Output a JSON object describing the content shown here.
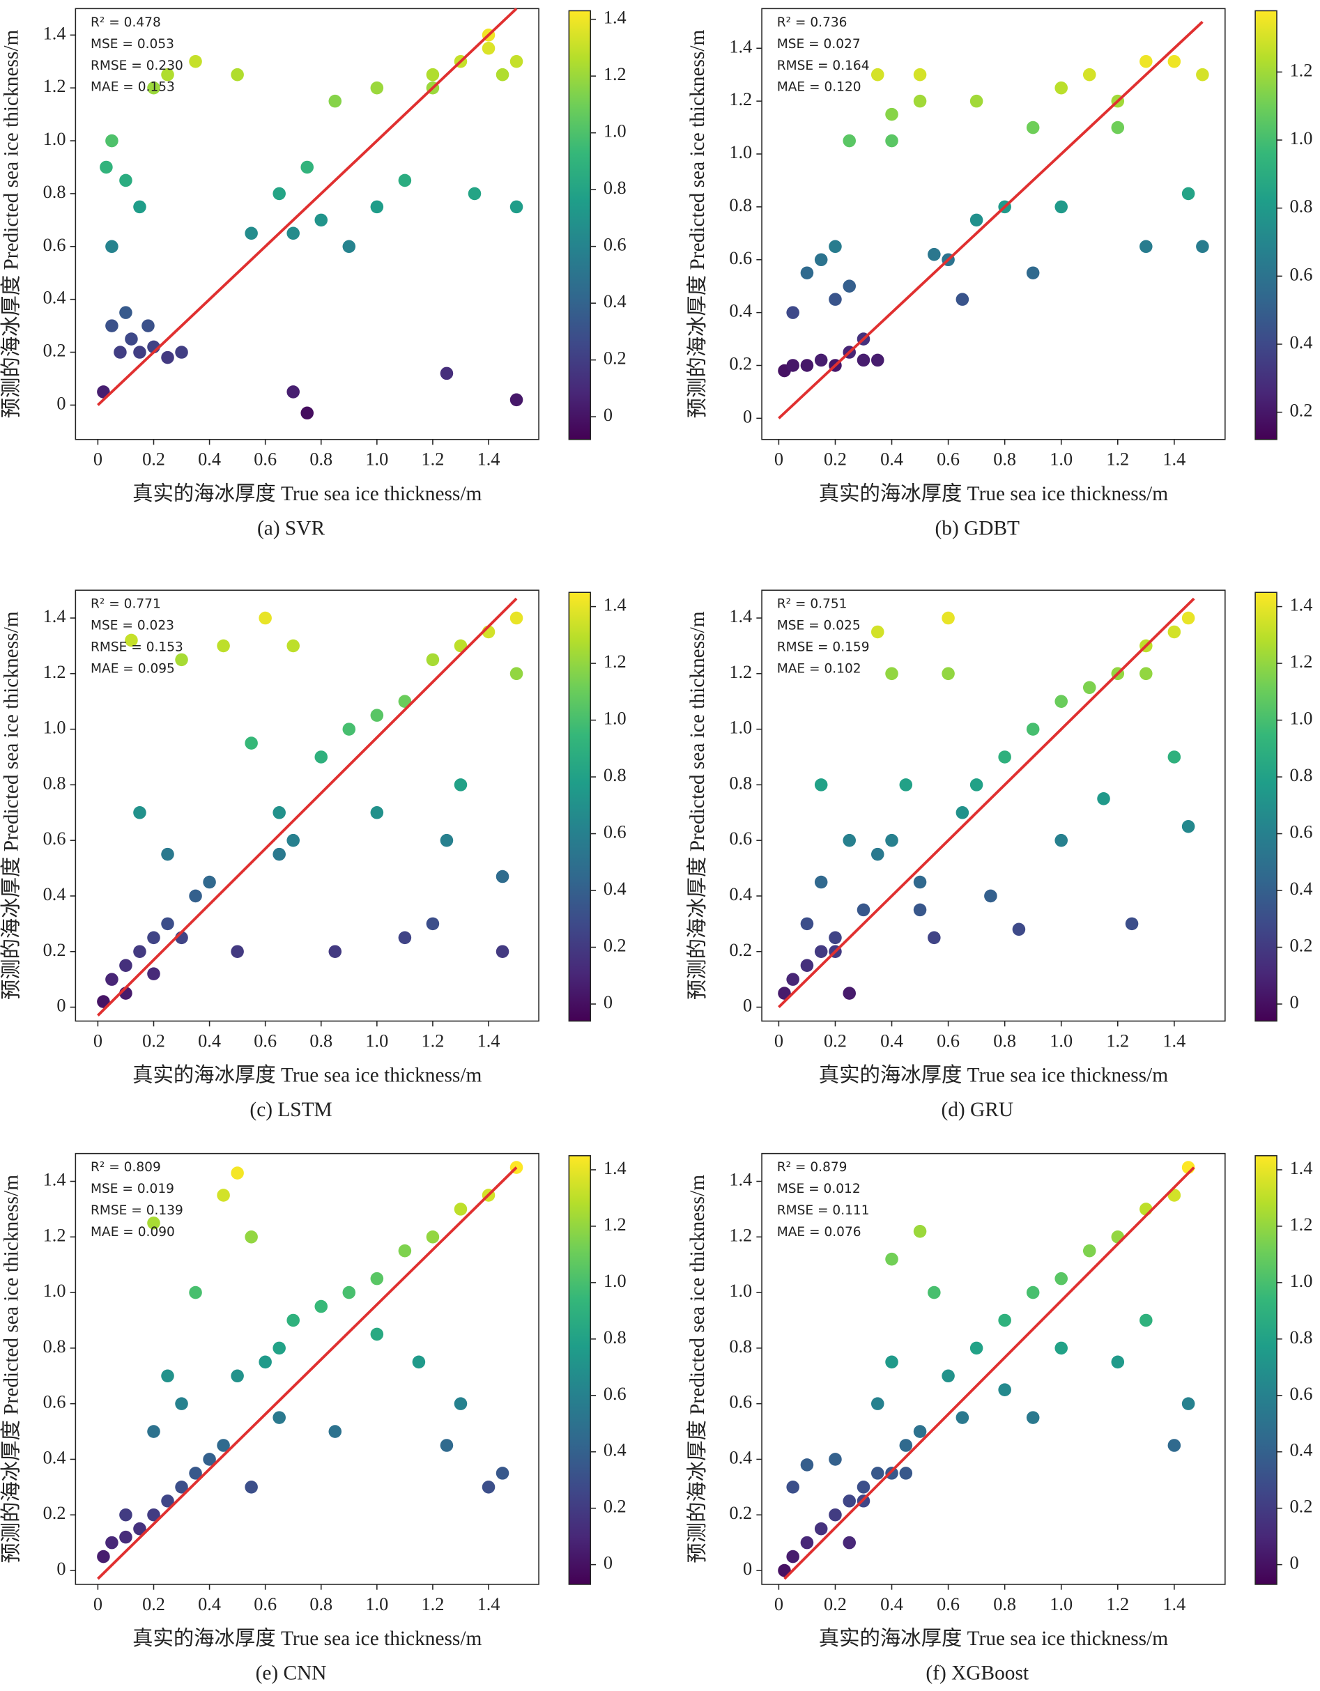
{
  "chart_data": [
    {
      "type": "scatter",
      "title": "(a) SVR",
      "xlabel": "真实的海冰厚度 True sea ice thickness/m",
      "ylabel": "预测的海冰厚度 Predicted sea ice thickness/m",
      "annotations": [
        "R² = 0.478",
        "MSE = 0.053",
        "RMSE = 0.230",
        "MAE = 0.153"
      ],
      "x": [
        0.02,
        0.05,
        0.08,
        0.1,
        0.12,
        0.15,
        0.18,
        0.2,
        0.25,
        0.3,
        0.03,
        0.05,
        0.1,
        0.15,
        0.2,
        0.25,
        0.35,
        0.5,
        0.55,
        0.65,
        0.7,
        0.75,
        0.8,
        0.9,
        1.0,
        1.1,
        1.2,
        1.25,
        1.3,
        1.4,
        1.45,
        1.5,
        1.5,
        1.35,
        1.0,
        0.85,
        0.7,
        0.75,
        1.2,
        1.4,
        1.5,
        0.05
      ],
      "y": [
        0.05,
        0.3,
        0.2,
        0.35,
        0.25,
        0.2,
        0.3,
        0.22,
        0.18,
        0.2,
        0.9,
        0.6,
        0.85,
        0.75,
        1.2,
        1.25,
        1.3,
        1.25,
        0.65,
        0.8,
        0.05,
        -0.03,
        0.7,
        0.6,
        0.75,
        0.85,
        1.25,
        0.12,
        1.3,
        1.35,
        1.25,
        1.3,
        0.02,
        0.8,
        1.2,
        1.15,
        0.65,
        0.9,
        1.2,
        1.4,
        0.75,
        1.0
      ],
      "fit_line": {
        "x": [
          0,
          1.5
        ],
        "y": [
          0,
          1.5
        ],
        "color": "#e03030"
      },
      "xlim": [
        -0.08,
        1.58
      ],
      "ylim": [
        -0.13,
        1.5
      ],
      "xticks": [
        0,
        0.2,
        0.4,
        0.6,
        0.8,
        {
          "value": 1,
          "label": "1.0"
        },
        1.2,
        1.4
      ],
      "yticks": [
        0,
        0.2,
        0.4,
        0.6,
        0.8,
        {
          "value": 1,
          "label": "1.0"
        },
        1.2,
        1.4
      ],
      "colormap": "viridis",
      "colorbar": {
        "lim": [
          -0.08,
          1.43
        ],
        "ticks": [
          0,
          0.2,
          0.4,
          0.6,
          0.8,
          {
            "value": 1,
            "label": "1.0"
          },
          1.2,
          1.4
        ]
      }
    },
    {
      "type": "scatter",
      "title": "(b) GDBT",
      "xlabel": "真实的海冰厚度 True sea ice thickness/m",
      "ylabel": "预测的海冰厚度 Predicted sea ice thickness/m",
      "annotations": [
        "R² = 0.736",
        "MSE = 0.027",
        "RMSE = 0.164",
        "MAE = 0.120"
      ],
      "x": [
        0.02,
        0.05,
        0.1,
        0.15,
        0.2,
        0.25,
        0.3,
        0.35,
        0.05,
        0.1,
        0.15,
        0.2,
        0.25,
        0.2,
        0.3,
        0.4,
        0.5,
        0.55,
        0.6,
        0.65,
        0.7,
        0.8,
        0.9,
        1.0,
        1.1,
        1.2,
        1.3,
        1.4,
        1.5,
        1.5,
        0.4,
        0.5,
        0.7,
        0.9,
        1.0,
        1.2,
        1.3,
        1.45,
        0.25,
        0.35
      ],
      "y": [
        0.18,
        0.2,
        0.2,
        0.22,
        0.2,
        0.25,
        0.22,
        0.22,
        0.4,
        0.55,
        0.6,
        0.45,
        0.5,
        0.65,
        0.3,
        1.15,
        1.2,
        0.62,
        0.6,
        0.45,
        1.2,
        0.8,
        1.1,
        1.25,
        1.3,
        1.2,
        1.35,
        1.35,
        1.3,
        0.65,
        1.05,
        1.3,
        0.75,
        0.55,
        0.8,
        1.1,
        0.65,
        0.85,
        1.05,
        1.3
      ],
      "fit_line": {
        "x": [
          0,
          1.5
        ],
        "y": [
          0,
          1.5
        ],
        "color": "#e03030"
      },
      "xlim": [
        -0.06,
        1.58
      ],
      "ylim": [
        -0.08,
        1.55
      ],
      "xticks": [
        0,
        0.2,
        0.4,
        0.6,
        0.8,
        {
          "value": 1,
          "label": "1.0"
        },
        1.2,
        1.4
      ],
      "yticks": [
        0,
        0.2,
        0.4,
        0.6,
        0.8,
        {
          "value": 1,
          "label": "1.0"
        },
        1.2,
        1.4
      ],
      "colormap": "viridis",
      "colorbar": {
        "lim": [
          0.12,
          1.38
        ],
        "ticks": [
          0.2,
          0.4,
          0.6,
          0.8,
          {
            "value": 1,
            "label": "1.0"
          },
          1.2
        ]
      }
    },
    {
      "type": "scatter",
      "title": "(c) LSTM",
      "xlabel": "真实的海冰厚度 True sea ice thickness/m",
      "ylabel": "预测的海冰厚度 Predicted sea ice thickness/m",
      "annotations": [
        "R² = 0.771",
        "MSE = 0.023",
        "RMSE = 0.153",
        "MAE = 0.095"
      ],
      "x": [
        0.02,
        0.05,
        0.1,
        0.15,
        0.2,
        0.25,
        0.1,
        0.2,
        0.3,
        0.35,
        0.15,
        0.25,
        0.4,
        0.5,
        0.55,
        0.65,
        0.7,
        0.8,
        0.9,
        1.0,
        1.1,
        1.2,
        1.3,
        1.4,
        1.5,
        1.5,
        1.45,
        1.3,
        1.2,
        1.0,
        0.6,
        0.65,
        0.7,
        0.85,
        1.1,
        1.25,
        1.45,
        0.45,
        0.3,
        0.12
      ],
      "y": [
        0.02,
        0.1,
        0.15,
        0.2,
        0.25,
        0.3,
        0.05,
        0.12,
        0.25,
        0.4,
        0.7,
        0.55,
        0.45,
        0.2,
        0.95,
        0.7,
        0.6,
        0.9,
        1.0,
        1.05,
        1.1,
        1.25,
        1.3,
        1.35,
        1.4,
        1.2,
        0.47,
        0.8,
        0.3,
        0.7,
        1.4,
        0.55,
        1.3,
        0.2,
        0.25,
        0.6,
        0.2,
        1.3,
        1.25,
        1.32
      ],
      "fit_line": {
        "x": [
          0,
          1.5
        ],
        "y": [
          -0.03,
          1.47
        ],
        "color": "#e03030"
      },
      "xlim": [
        -0.08,
        1.58
      ],
      "ylim": [
        -0.05,
        1.5
      ],
      "xticks": [
        0,
        0.2,
        0.4,
        0.6,
        0.8,
        {
          "value": 1,
          "label": "1.0"
        },
        1.2,
        1.4
      ],
      "yticks": [
        0,
        0.2,
        0.4,
        0.6,
        0.8,
        {
          "value": 1,
          "label": "1.0"
        },
        1.2,
        1.4
      ],
      "colormap": "viridis",
      "colorbar": {
        "lim": [
          -0.06,
          1.45
        ],
        "ticks": [
          0,
          0.2,
          0.4,
          0.6,
          0.8,
          {
            "value": 1,
            "label": "1.0"
          },
          1.2,
          1.4
        ]
      }
    },
    {
      "type": "scatter",
      "title": "(d) GRU",
      "xlabel": "真实的海冰厚度 True sea ice thickness/m",
      "ylabel": "预测的海冰厚度 Predicted sea ice thickness/m",
      "annotations": [
        "R² = 0.751",
        "MSE = 0.025",
        "RMSE = 0.159",
        "MAE = 0.102"
      ],
      "x": [
        0.02,
        0.05,
        0.1,
        0.15,
        0.2,
        0.25,
        0.1,
        0.3,
        0.35,
        0.4,
        0.15,
        0.25,
        0.45,
        0.5,
        0.6,
        0.65,
        0.7,
        0.8,
        0.9,
        1.0,
        1.1,
        1.2,
        1.3,
        1.4,
        1.45,
        1.45,
        1.4,
        1.25,
        1.15,
        1.0,
        0.55,
        0.6,
        0.75,
        0.85,
        0.2,
        0.4,
        1.3,
        0.5,
        0.15,
        0.35
      ],
      "y": [
        0.05,
        0.1,
        0.15,
        0.2,
        0.25,
        0.05,
        0.3,
        0.35,
        0.55,
        0.6,
        0.45,
        0.6,
        0.8,
        0.35,
        1.2,
        0.7,
        0.8,
        0.9,
        1.0,
        1.1,
        1.15,
        1.2,
        1.3,
        1.35,
        1.4,
        0.65,
        0.9,
        0.3,
        0.75,
        0.6,
        0.25,
        1.4,
        0.4,
        0.28,
        0.2,
        1.2,
        1.2,
        0.45,
        0.8,
        1.35
      ],
      "fit_line": {
        "x": [
          0,
          1.47
        ],
        "y": [
          0,
          1.47
        ],
        "color": "#e03030"
      },
      "xlim": [
        -0.06,
        1.58
      ],
      "ylim": [
        -0.05,
        1.5
      ],
      "xticks": [
        0,
        0.2,
        0.4,
        0.6,
        0.8,
        {
          "value": 1,
          "label": "1.0"
        },
        1.2,
        1.4
      ],
      "yticks": [
        0,
        0.2,
        0.4,
        0.6,
        0.8,
        {
          "value": 1,
          "label": "1.0"
        },
        1.2,
        1.4
      ],
      "colormap": "viridis",
      "colorbar": {
        "lim": [
          -0.06,
          1.45
        ],
        "ticks": [
          0,
          0.2,
          0.4,
          0.6,
          0.8,
          {
            "value": 1,
            "label": "1.0"
          },
          1.2,
          1.4
        ]
      }
    },
    {
      "type": "scatter",
      "title": "(e) CNN",
      "xlabel": "真实的海冰厚度 True sea ice thickness/m",
      "ylabel": "预测的海冰厚度 Predicted sea ice thickness/m",
      "annotations": [
        "R² = 0.809",
        "MSE = 0.019",
        "RMSE = 0.139",
        "MAE = 0.090"
      ],
      "x": [
        0.02,
        0.05,
        0.1,
        0.15,
        0.2,
        0.25,
        0.3,
        0.35,
        0.4,
        0.45,
        0.1,
        0.2,
        0.3,
        0.5,
        0.55,
        0.6,
        0.65,
        0.7,
        0.8,
        0.9,
        1.0,
        1.1,
        1.2,
        1.3,
        1.4,
        1.5,
        1.45,
        1.3,
        1.15,
        1.0,
        0.5,
        0.45,
        0.35,
        0.2,
        0.65,
        0.85,
        1.25,
        1.4,
        0.25,
        0.55
      ],
      "y": [
        0.05,
        0.1,
        0.12,
        0.15,
        0.2,
        0.25,
        0.3,
        0.35,
        0.4,
        0.45,
        0.2,
        0.5,
        0.6,
        0.7,
        0.3,
        0.75,
        0.8,
        0.9,
        0.95,
        1.0,
        1.05,
        1.15,
        1.2,
        1.3,
        1.35,
        1.45,
        0.35,
        0.6,
        0.75,
        0.85,
        1.43,
        1.35,
        1.0,
        1.25,
        0.55,
        0.5,
        0.45,
        0.3,
        0.7,
        1.2
      ],
      "fit_line": {
        "x": [
          0,
          1.5
        ],
        "y": [
          -0.03,
          1.45
        ],
        "color": "#e03030"
      },
      "xlim": [
        -0.08,
        1.58
      ],
      "ylim": [
        -0.05,
        1.5
      ],
      "xticks": [
        0,
        0.2,
        0.4,
        0.6,
        0.8,
        {
          "value": 1,
          "label": "1.0"
        },
        1.2,
        1.4
      ],
      "yticks": [
        0,
        0.2,
        0.4,
        0.6,
        0.8,
        {
          "value": 1,
          "label": "1.0"
        },
        1.2,
        1.4
      ],
      "colormap": "viridis",
      "colorbar": {
        "lim": [
          -0.07,
          1.45
        ],
        "ticks": [
          0,
          0.2,
          0.4,
          0.6,
          0.8,
          {
            "value": 1,
            "label": "1.0"
          },
          1.2,
          1.4
        ]
      }
    },
    {
      "type": "scatter",
      "title": "(f) XGBoost",
      "xlabel": "真实的海冰厚度 True sea ice thickness/m",
      "ylabel": "预测的海冰厚度 Predicted sea ice thickness/m",
      "annotations": [
        "R² = 0.879",
        "MSE = 0.012",
        "RMSE = 0.111",
        "MAE = 0.076"
      ],
      "x": [
        0.02,
        0.05,
        0.1,
        0.15,
        0.2,
        0.25,
        0.3,
        0.35,
        0.4,
        0.45,
        0.05,
        0.1,
        0.2,
        0.3,
        0.35,
        0.4,
        0.5,
        0.6,
        0.7,
        0.8,
        0.9,
        1.0,
        1.1,
        1.2,
        1.3,
        1.4,
        1.45,
        1.45,
        1.2,
        1.0,
        0.8,
        0.65,
        0.55,
        0.5,
        0.4,
        1.4,
        1.3,
        0.9,
        0.25,
        0.45
      ],
      "y": [
        0.0,
        0.05,
        0.1,
        0.15,
        0.2,
        0.25,
        0.3,
        0.35,
        0.35,
        0.45,
        0.3,
        0.38,
        0.4,
        0.25,
        0.6,
        0.75,
        0.5,
        0.7,
        0.8,
        0.9,
        1.0,
        1.05,
        1.15,
        1.2,
        1.3,
        1.35,
        1.45,
        0.6,
        0.75,
        0.8,
        0.65,
        0.55,
        1.0,
        1.22,
        1.12,
        0.45,
        0.9,
        0.55,
        0.1,
        0.35
      ],
      "fit_line": {
        "x": [
          0.02,
          1.47
        ],
        "y": [
          -0.03,
          1.45
        ],
        "color": "#e03030"
      },
      "xlim": [
        -0.06,
        1.58
      ],
      "ylim": [
        -0.05,
        1.5
      ],
      "xticks": [
        0,
        0.2,
        0.4,
        0.6,
        0.8,
        {
          "value": 1,
          "label": "1.0"
        },
        1.2,
        1.4
      ],
      "yticks": [
        0,
        0.2,
        0.4,
        0.6,
        0.8,
        {
          "value": 1,
          "label": "1.0"
        },
        1.2,
        1.4
      ],
      "colormap": "viridis",
      "colorbar": {
        "lim": [
          -0.07,
          1.45
        ],
        "ticks": [
          0,
          0.2,
          0.4,
          0.6,
          0.8,
          {
            "value": 1,
            "label": "1.0"
          },
          1.2,
          1.4
        ]
      }
    }
  ]
}
